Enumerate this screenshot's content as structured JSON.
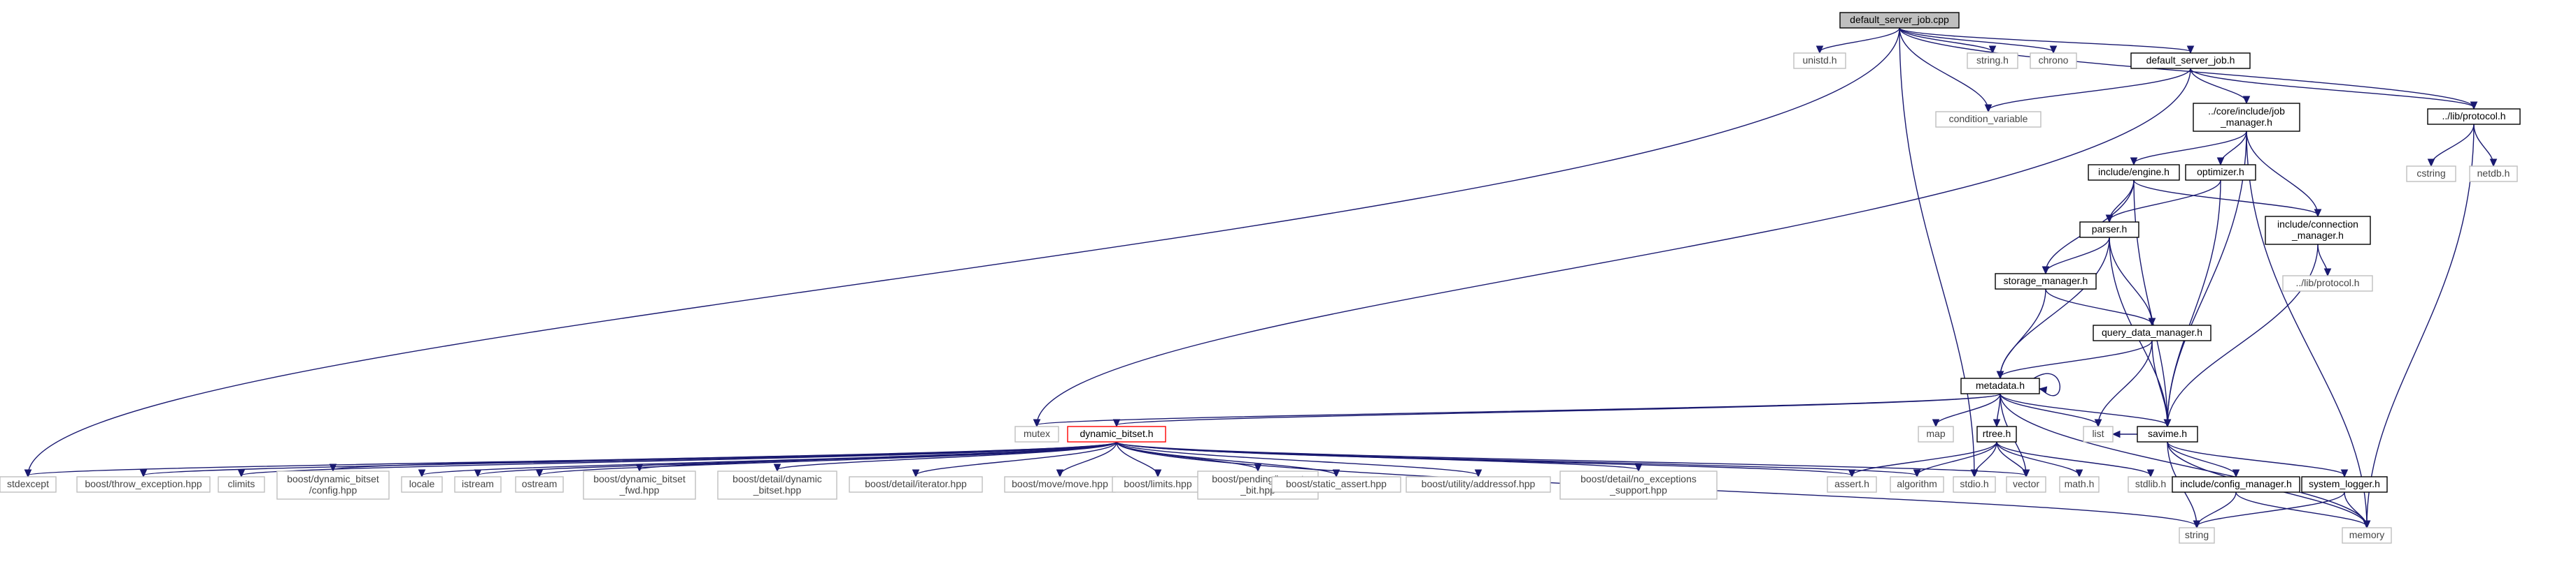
{
  "diagram": {
    "type": "include-dependency-graph",
    "edge_color": "#191970",
    "node_styles": {
      "main": {
        "fill": "#bfbfbf",
        "border": "#000000"
      },
      "local": {
        "fill": "#ffffff",
        "border": "#000000"
      },
      "system": {
        "fill": "#ffffff",
        "border": "#bfbfbf"
      },
      "unresolved": {
        "fill": "#ffffff",
        "border": "#ff0000"
      }
    },
    "nodes": [
      {
        "id": "root",
        "lines": [
          "default_server_job.cpp"
        ],
        "style": "main"
      },
      {
        "id": "unistd",
        "lines": [
          "unistd.h"
        ],
        "style": "sys"
      },
      {
        "id": "stringh",
        "lines": [
          "string.h"
        ],
        "style": "sys"
      },
      {
        "id": "chrono",
        "lines": [
          "chrono"
        ],
        "style": "sys"
      },
      {
        "id": "dsjh",
        "lines": [
          "default_server_job.h"
        ],
        "style": "local"
      },
      {
        "id": "protocolh",
        "lines": [
          "../lib/protocol.h"
        ],
        "style": "local"
      },
      {
        "id": "condvar",
        "lines": [
          "condition_variable"
        ],
        "style": "sys"
      },
      {
        "id": "jobmgr",
        "lines": [
          "../core/include/job",
          "_manager.h"
        ],
        "style": "local"
      },
      {
        "id": "cstring",
        "lines": [
          "cstring"
        ],
        "style": "sys"
      },
      {
        "id": "netdb",
        "lines": [
          "netdb.h"
        ],
        "style": "sys"
      },
      {
        "id": "engine",
        "lines": [
          "include/engine.h"
        ],
        "style": "local"
      },
      {
        "id": "optimizer",
        "lines": [
          "optimizer.h"
        ],
        "style": "local"
      },
      {
        "id": "connmgr",
        "lines": [
          "include/connection",
          "_manager.h"
        ],
        "style": "local"
      },
      {
        "id": "parser",
        "lines": [
          "parser.h"
        ],
        "style": "local"
      },
      {
        "id": "libproto2",
        "lines": [
          "../lib/protocol.h"
        ],
        "style": "sys"
      },
      {
        "id": "storage",
        "lines": [
          "storage_manager.h"
        ],
        "style": "local"
      },
      {
        "id": "qdm",
        "lines": [
          "query_data_manager.h"
        ],
        "style": "local"
      },
      {
        "id": "metadata",
        "lines": [
          "metadata.h"
        ],
        "style": "local"
      },
      {
        "id": "mutex",
        "lines": [
          "mutex"
        ],
        "style": "sys"
      },
      {
        "id": "dynbitset",
        "lines": [
          "dynamic_bitset.h"
        ],
        "style": "red"
      },
      {
        "id": "map",
        "lines": [
          "map"
        ],
        "style": "sys"
      },
      {
        "id": "rtree",
        "lines": [
          "rtree.h"
        ],
        "style": "local"
      },
      {
        "id": "list",
        "lines": [
          "list"
        ],
        "style": "sys"
      },
      {
        "id": "savime",
        "lines": [
          "savime.h"
        ],
        "style": "local"
      },
      {
        "id": "stdexcept",
        "lines": [
          "stdexcept"
        ],
        "style": "sys"
      },
      {
        "id": "throwexc",
        "lines": [
          "boost/throw_exception.hpp"
        ],
        "style": "sys"
      },
      {
        "id": "climits",
        "lines": [
          "climits"
        ],
        "style": "sys"
      },
      {
        "id": "dbconfig",
        "lines": [
          "boost/dynamic_bitset",
          "/config.hpp"
        ],
        "style": "sys"
      },
      {
        "id": "locale",
        "lines": [
          "locale"
        ],
        "style": "sys"
      },
      {
        "id": "istream",
        "lines": [
          "istream"
        ],
        "style": "sys"
      },
      {
        "id": "ostream",
        "lines": [
          "ostream"
        ],
        "style": "sys"
      },
      {
        "id": "dbfwd",
        "lines": [
          "boost/dynamic_bitset",
          "_fwd.hpp"
        ],
        "style": "sys"
      },
      {
        "id": "detaildb",
        "lines": [
          "boost/detail/dynamic",
          "_bitset.hpp"
        ],
        "style": "sys"
      },
      {
        "id": "iterator",
        "lines": [
          "boost/detail/iterator.hpp"
        ],
        "style": "sys"
      },
      {
        "id": "move",
        "lines": [
          "boost/move/move.hpp"
        ],
        "style": "sys"
      },
      {
        "id": "limits",
        "lines": [
          "boost/limits.hpp"
        ],
        "style": "sys"
      },
      {
        "id": "lowestbit",
        "lines": [
          "boost/pending/lowest",
          "_bit.hpp"
        ],
        "style": "sys"
      },
      {
        "id": "staticassert",
        "lines": [
          "boost/static_assert.hpp"
        ],
        "style": "sys"
      },
      {
        "id": "addressof",
        "lines": [
          "boost/utility/addressof.hpp"
        ],
        "style": "sys"
      },
      {
        "id": "noexc",
        "lines": [
          "boost/detail/no_exceptions",
          "_support.hpp"
        ],
        "style": "sys"
      },
      {
        "id": "asserth",
        "lines": [
          "assert.h"
        ],
        "style": "sys"
      },
      {
        "id": "algorithm",
        "lines": [
          "algorithm"
        ],
        "style": "sys"
      },
      {
        "id": "stdio",
        "lines": [
          "stdio.h"
        ],
        "style": "sys"
      },
      {
        "id": "vector",
        "lines": [
          "vector"
        ],
        "style": "sys"
      },
      {
        "id": "mathh",
        "lines": [
          "math.h"
        ],
        "style": "sys"
      },
      {
        "id": "stdlib",
        "lines": [
          "stdlib.h"
        ],
        "style": "sys"
      },
      {
        "id": "configmgr",
        "lines": [
          "include/config_manager.h"
        ],
        "style": "local"
      },
      {
        "id": "syslogger",
        "lines": [
          "system_logger.h"
        ],
        "style": "local"
      },
      {
        "id": "stringstd",
        "lines": [
          "string"
        ],
        "style": "sys"
      },
      {
        "id": "memory",
        "lines": [
          "memory"
        ],
        "style": "sys"
      }
    ],
    "edges": [
      [
        "root",
        "unistd"
      ],
      [
        "root",
        "stringh"
      ],
      [
        "root",
        "chrono"
      ],
      [
        "root",
        "dsjh"
      ],
      [
        "root",
        "protocolh"
      ],
      [
        "root",
        "condvar"
      ],
      [
        "root",
        "stdio"
      ],
      [
        "root",
        "stdexcept"
      ],
      [
        "dsjh",
        "condvar"
      ],
      [
        "dsjh",
        "jobmgr"
      ],
      [
        "dsjh",
        "protocolh"
      ],
      [
        "dsjh",
        "mutex"
      ],
      [
        "protocolh",
        "cstring"
      ],
      [
        "protocolh",
        "netdb"
      ],
      [
        "protocolh",
        "memory"
      ],
      [
        "jobmgr",
        "engine"
      ],
      [
        "jobmgr",
        "optimizer"
      ],
      [
        "jobmgr",
        "connmgr"
      ],
      [
        "jobmgr",
        "savime"
      ],
      [
        "jobmgr",
        "memory"
      ],
      [
        "engine",
        "parser"
      ],
      [
        "engine",
        "connmgr"
      ],
      [
        "engine",
        "storage"
      ],
      [
        "engine",
        "savime"
      ],
      [
        "optimizer",
        "parser"
      ],
      [
        "optimizer",
        "savime"
      ],
      [
        "connmgr",
        "libproto2"
      ],
      [
        "connmgr",
        "savime"
      ],
      [
        "parser",
        "storage"
      ],
      [
        "parser",
        "qdm"
      ],
      [
        "parser",
        "metadata"
      ],
      [
        "parser",
        "savime"
      ],
      [
        "storage",
        "qdm"
      ],
      [
        "storage",
        "metadata"
      ],
      [
        "qdm",
        "metadata"
      ],
      [
        "qdm",
        "list"
      ],
      [
        "qdm",
        "savime"
      ],
      [
        "metadata",
        "metadata"
      ],
      [
        "metadata",
        "mutex"
      ],
      [
        "metadata",
        "dynbitset"
      ],
      [
        "metadata",
        "map"
      ],
      [
        "metadata",
        "rtree"
      ],
      [
        "metadata",
        "list"
      ],
      [
        "metadata",
        "savime"
      ],
      [
        "metadata",
        "vector"
      ],
      [
        "metadata",
        "memory"
      ],
      [
        "dynbitset",
        "stdexcept"
      ],
      [
        "dynbitset",
        "throwexc"
      ],
      [
        "dynbitset",
        "climits"
      ],
      [
        "dynbitset",
        "dbconfig"
      ],
      [
        "dynbitset",
        "locale"
      ],
      [
        "dynbitset",
        "istream"
      ],
      [
        "dynbitset",
        "ostream"
      ],
      [
        "dynbitset",
        "dbfwd"
      ],
      [
        "dynbitset",
        "detaildb"
      ],
      [
        "dynbitset",
        "iterator"
      ],
      [
        "dynbitset",
        "move"
      ],
      [
        "dynbitset",
        "limits"
      ],
      [
        "dynbitset",
        "lowestbit"
      ],
      [
        "dynbitset",
        "staticassert"
      ],
      [
        "dynbitset",
        "addressof"
      ],
      [
        "dynbitset",
        "noexc"
      ],
      [
        "dynbitset",
        "asserth"
      ],
      [
        "dynbitset",
        "algorithm"
      ],
      [
        "dynbitset",
        "vector"
      ],
      [
        "dynbitset",
        "stringstd"
      ],
      [
        "rtree",
        "asserth"
      ],
      [
        "rtree",
        "algorithm"
      ],
      [
        "rtree",
        "stdio"
      ],
      [
        "rtree",
        "vector"
      ],
      [
        "rtree",
        "mathh"
      ],
      [
        "rtree",
        "stdlib"
      ],
      [
        "savime",
        "list"
      ],
      [
        "savime",
        "configmgr"
      ],
      [
        "savime",
        "syslogger"
      ],
      [
        "savime",
        "stringstd"
      ],
      [
        "savime",
        "memory"
      ],
      [
        "configmgr",
        "stringstd"
      ],
      [
        "configmgr",
        "memory"
      ],
      [
        "syslogger",
        "stringstd"
      ],
      [
        "syslogger",
        "memory"
      ]
    ]
  }
}
